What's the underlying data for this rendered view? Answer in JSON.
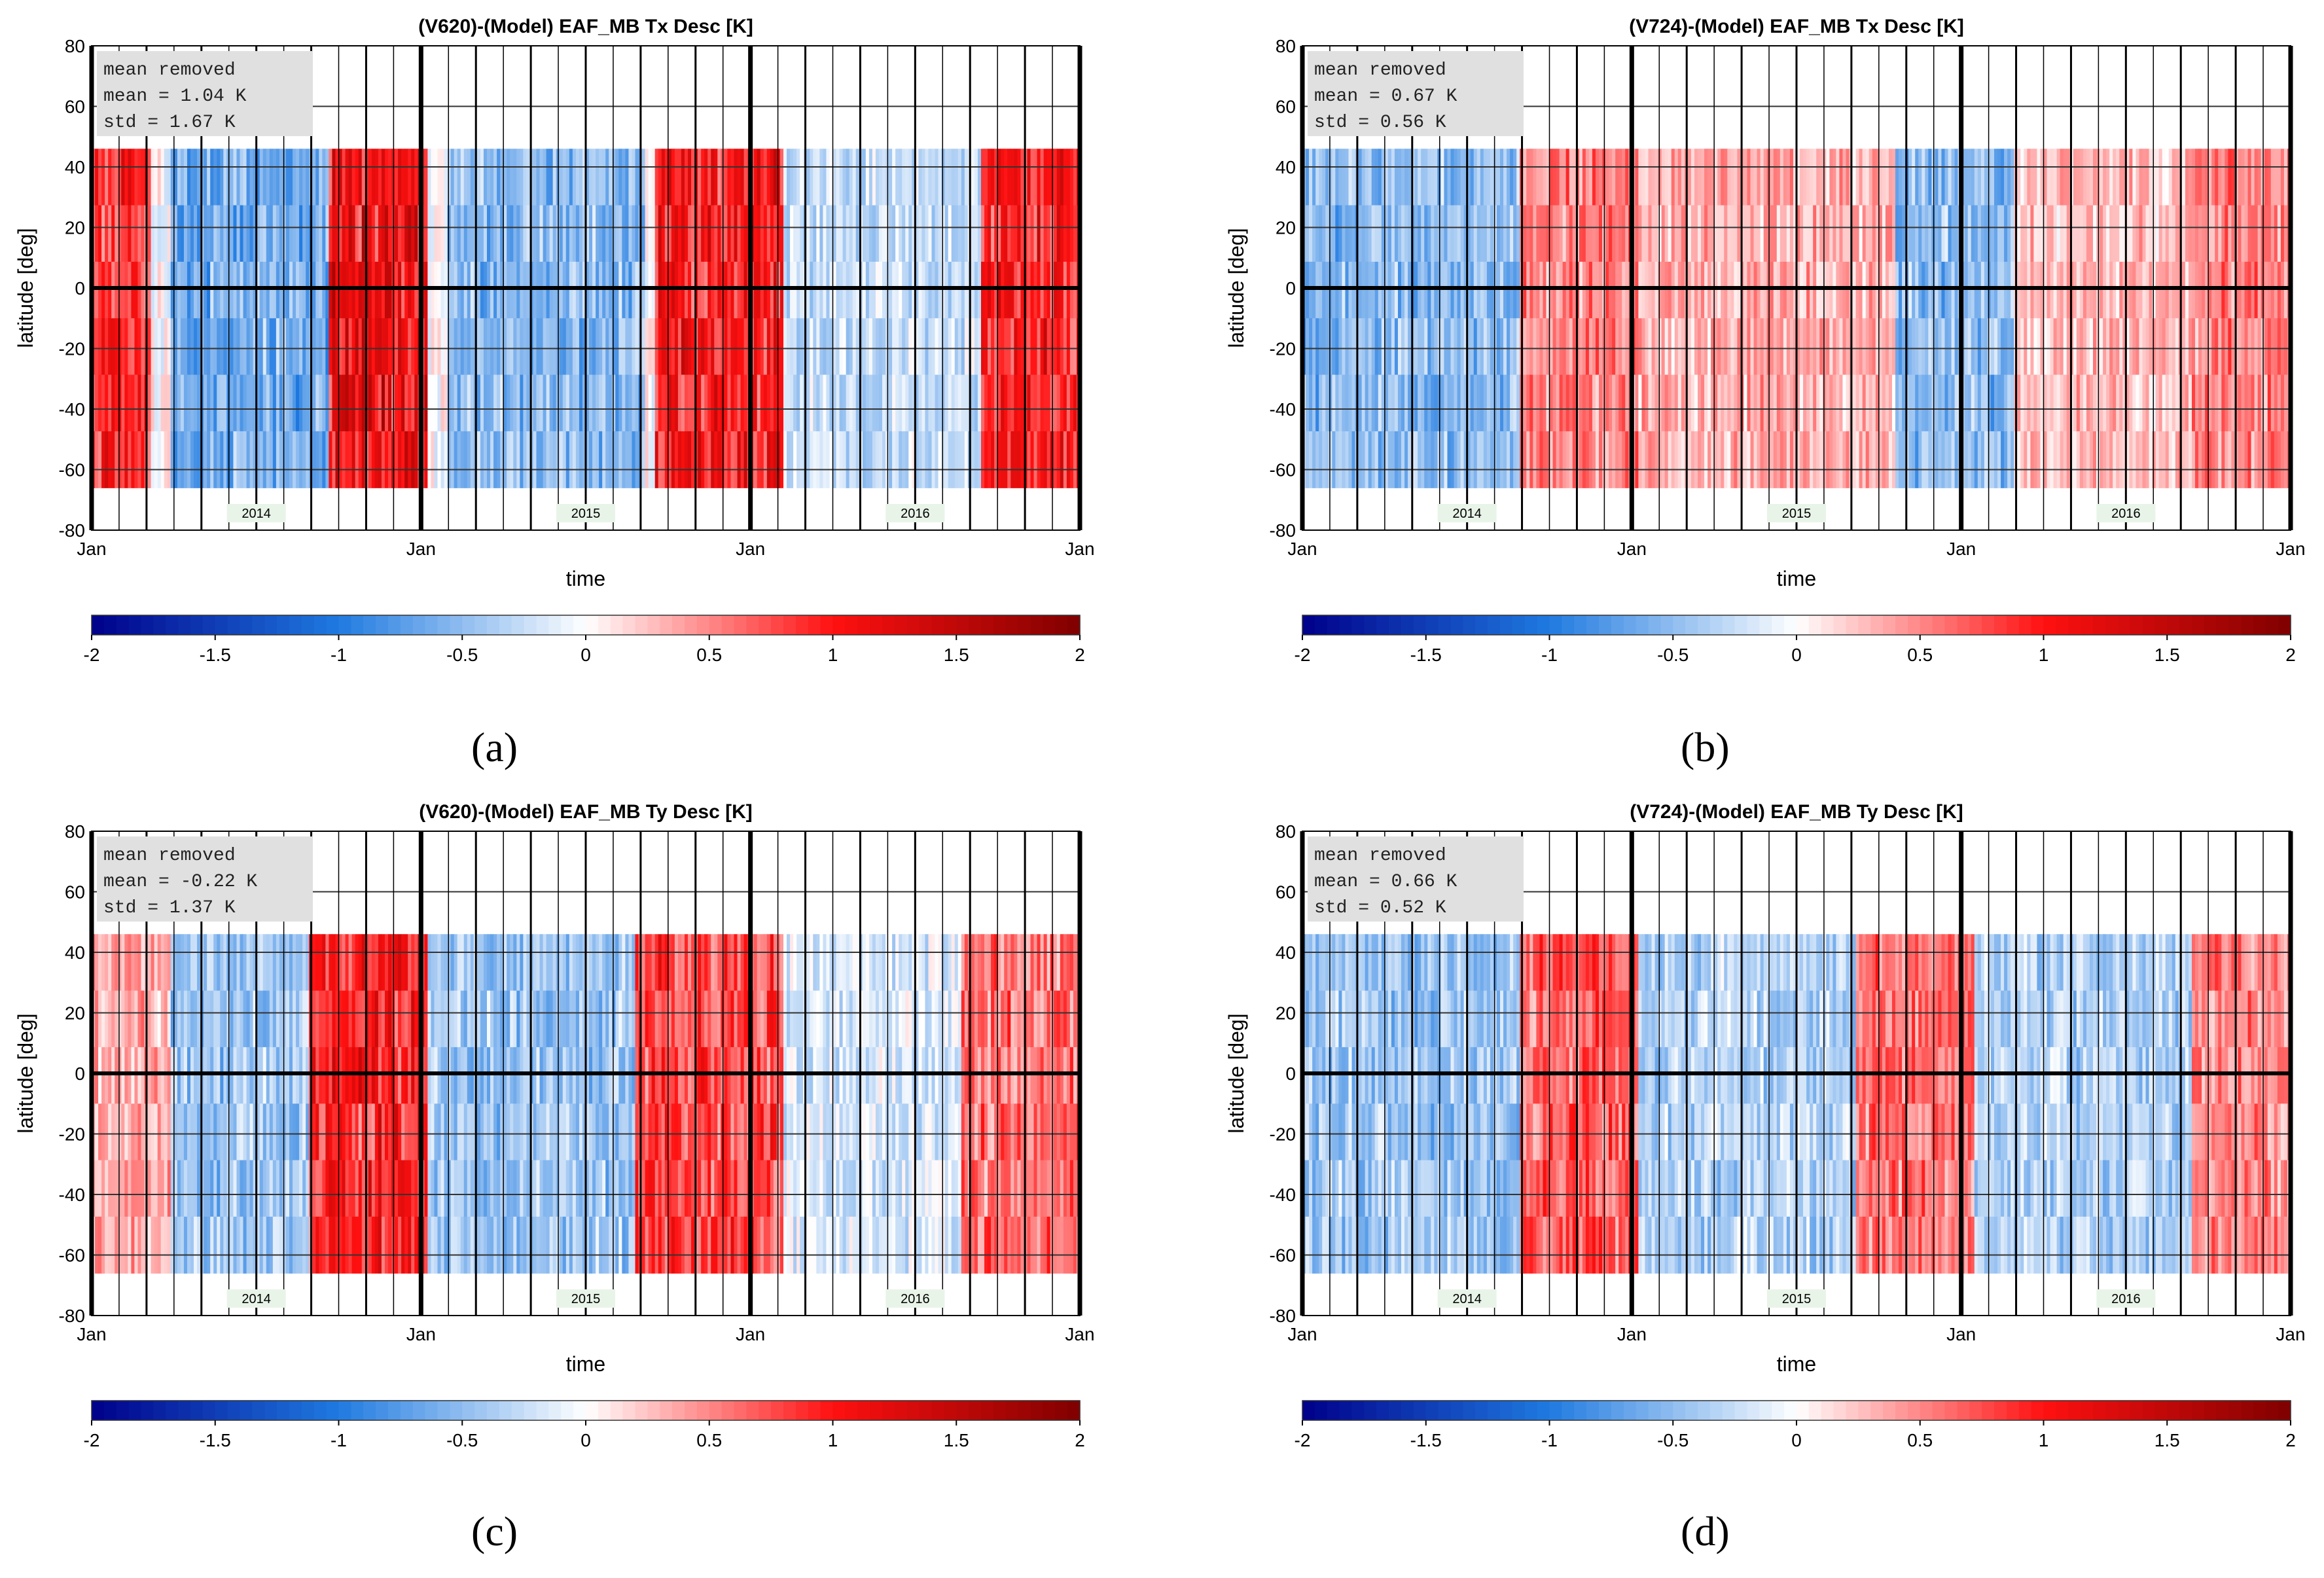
{
  "figure": {
    "panel_letters": [
      "(a)",
      "(b)",
      "(c)",
      "(d)"
    ]
  },
  "chart_data": [
    {
      "type": "heatmap",
      "title": "(V620)-(Model) EAF_MB Tx Desc [K]",
      "xlabel": "time",
      "ylabel": "latitude [deg]",
      "x_ticks": [
        "Jan",
        "Jan",
        "Jan",
        "Jan"
      ],
      "y_ticks": [
        80,
        60,
        40,
        20,
        0,
        -20,
        -40,
        -60,
        -80
      ],
      "ylim": [
        -80,
        80
      ],
      "year_labels": [
        "2014",
        "2015",
        "2016"
      ],
      "stats": {
        "line1": "mean removed",
        "line2": "mean =    1.04 K",
        "line3": "std  =    1.67 K"
      },
      "colorbar": {
        "ticks": [
          "-2",
          "-1.5",
          "-1",
          "-0.5",
          "0",
          "0.5",
          "1",
          "1.5",
          "2"
        ],
        "range": [
          -2,
          2
        ],
        "colors": [
          "#00008b",
          "#1f7ae0",
          "#ffffff",
          "#ff1010",
          "#800000"
        ]
      },
      "grid": true,
      "data_coverage_lat": [
        -66,
        46
      ],
      "anomaly_bands": [
        {
          "t_start": 0.0,
          "t_end": 0.06,
          "value": 1.0
        },
        {
          "t_start": 0.08,
          "t_end": 0.24,
          "value": -0.7
        },
        {
          "t_start": 0.24,
          "t_end": 0.34,
          "value": 1.3
        },
        {
          "t_start": 0.36,
          "t_end": 0.56,
          "value": -0.6
        },
        {
          "t_start": 0.57,
          "t_end": 0.7,
          "value": 1.2
        },
        {
          "t_start": 0.7,
          "t_end": 0.9,
          "value": -0.3
        },
        {
          "t_start": 0.9,
          "t_end": 1.0,
          "value": 1.1
        }
      ]
    },
    {
      "type": "heatmap",
      "title": "(V724)-(Model) EAF_MB Tx Desc [K]",
      "xlabel": "time",
      "ylabel": "latitude [deg]",
      "x_ticks": [
        "Jan",
        "Jan",
        "Jan",
        "Jan"
      ],
      "y_ticks": [
        80,
        60,
        40,
        20,
        0,
        -20,
        -40,
        -60,
        -80
      ],
      "ylim": [
        -80,
        80
      ],
      "year_labels": [
        "2014",
        "2015",
        "2016"
      ],
      "stats": {
        "line1": "mean removed",
        "line2": "mean =    0.67 K",
        "line3": "std  =    0.56 K"
      },
      "colorbar": {
        "ticks": [
          "-2",
          "-1.5",
          "-1",
          "-0.5",
          "0",
          "0.5",
          "1",
          "1.5",
          "2"
        ],
        "range": [
          -2,
          2
        ],
        "colors": [
          "#00008b",
          "#1f7ae0",
          "#ffffff",
          "#ff1010",
          "#800000"
        ]
      },
      "grid": true,
      "data_coverage_lat": [
        -66,
        46
      ],
      "anomaly_bands": [
        {
          "t_start": 0.0,
          "t_end": 0.22,
          "value": -0.6
        },
        {
          "t_start": 0.22,
          "t_end": 0.34,
          "value": 0.6
        },
        {
          "t_start": 0.34,
          "t_end": 0.6,
          "value": 0.4
        },
        {
          "t_start": 0.6,
          "t_end": 0.72,
          "value": -0.6
        },
        {
          "t_start": 0.72,
          "t_end": 0.9,
          "value": 0.3
        },
        {
          "t_start": 0.9,
          "t_end": 1.0,
          "value": 0.6
        }
      ]
    },
    {
      "type": "heatmap",
      "title": "(V620)-(Model) EAF_MB Ty Desc [K]",
      "xlabel": "time",
      "ylabel": "latitude [deg]",
      "x_ticks": [
        "Jan",
        "Jan",
        "Jan",
        "Jan"
      ],
      "y_ticks": [
        80,
        60,
        40,
        20,
        0,
        -20,
        -40,
        -60,
        -80
      ],
      "ylim": [
        -80,
        80
      ],
      "year_labels": [
        "2014",
        "2015",
        "2016"
      ],
      "stats": {
        "line1": "mean removed",
        "line2": "mean =   -0.22 K",
        "line3": "std  =    1.37 K"
      },
      "colorbar": {
        "ticks": [
          "-2",
          "-1.5",
          "-1",
          "-0.5",
          "0",
          "0.5",
          "1",
          "1.5",
          "2"
        ],
        "range": [
          -2,
          2
        ],
        "colors": [
          "#00008b",
          "#1f7ae0",
          "#ffffff",
          "#ff1010",
          "#800000"
        ]
      },
      "grid": true,
      "data_coverage_lat": [
        -66,
        46
      ],
      "anomaly_bands": [
        {
          "t_start": 0.0,
          "t_end": 0.08,
          "value": 0.4
        },
        {
          "t_start": 0.08,
          "t_end": 0.22,
          "value": -0.5
        },
        {
          "t_start": 0.22,
          "t_end": 0.34,
          "value": 1.1
        },
        {
          "t_start": 0.34,
          "t_end": 0.55,
          "value": -0.5
        },
        {
          "t_start": 0.55,
          "t_end": 0.7,
          "value": 0.9
        },
        {
          "t_start": 0.7,
          "t_end": 0.88,
          "value": -0.2
        },
        {
          "t_start": 0.88,
          "t_end": 1.0,
          "value": 0.7
        }
      ]
    },
    {
      "type": "heatmap",
      "title": "(V724)-(Model) EAF_MB Ty Desc [K]",
      "xlabel": "time",
      "ylabel": "latitude [deg]",
      "x_ticks": [
        "Jan",
        "Jan",
        "Jan",
        "Jan"
      ],
      "y_ticks": [
        80,
        60,
        40,
        20,
        0,
        -20,
        -40,
        -60,
        -80
      ],
      "ylim": [
        -80,
        80
      ],
      "year_labels": [
        "2014",
        "2015",
        "2016"
      ],
      "stats": {
        "line1": "mean removed",
        "line2": "mean =    0.66 K",
        "line3": "std  =    0.52 K"
      },
      "colorbar": {
        "ticks": [
          "-2",
          "-1.5",
          "-1",
          "-0.5",
          "0",
          "0.5",
          "1",
          "1.5",
          "2"
        ],
        "range": [
          -2,
          2
        ],
        "colors": [
          "#00008b",
          "#1f7ae0",
          "#ffffff",
          "#ff1010",
          "#800000"
        ]
      },
      "grid": true,
      "data_coverage_lat": [
        -66,
        46
      ],
      "anomaly_bands": [
        {
          "t_start": 0.0,
          "t_end": 0.22,
          "value": -0.5
        },
        {
          "t_start": 0.22,
          "t_end": 0.34,
          "value": 0.8
        },
        {
          "t_start": 0.34,
          "t_end": 0.56,
          "value": -0.4
        },
        {
          "t_start": 0.56,
          "t_end": 0.68,
          "value": 0.7
        },
        {
          "t_start": 0.68,
          "t_end": 0.9,
          "value": -0.4
        },
        {
          "t_start": 0.9,
          "t_end": 1.0,
          "value": 0.6
        }
      ]
    }
  ]
}
